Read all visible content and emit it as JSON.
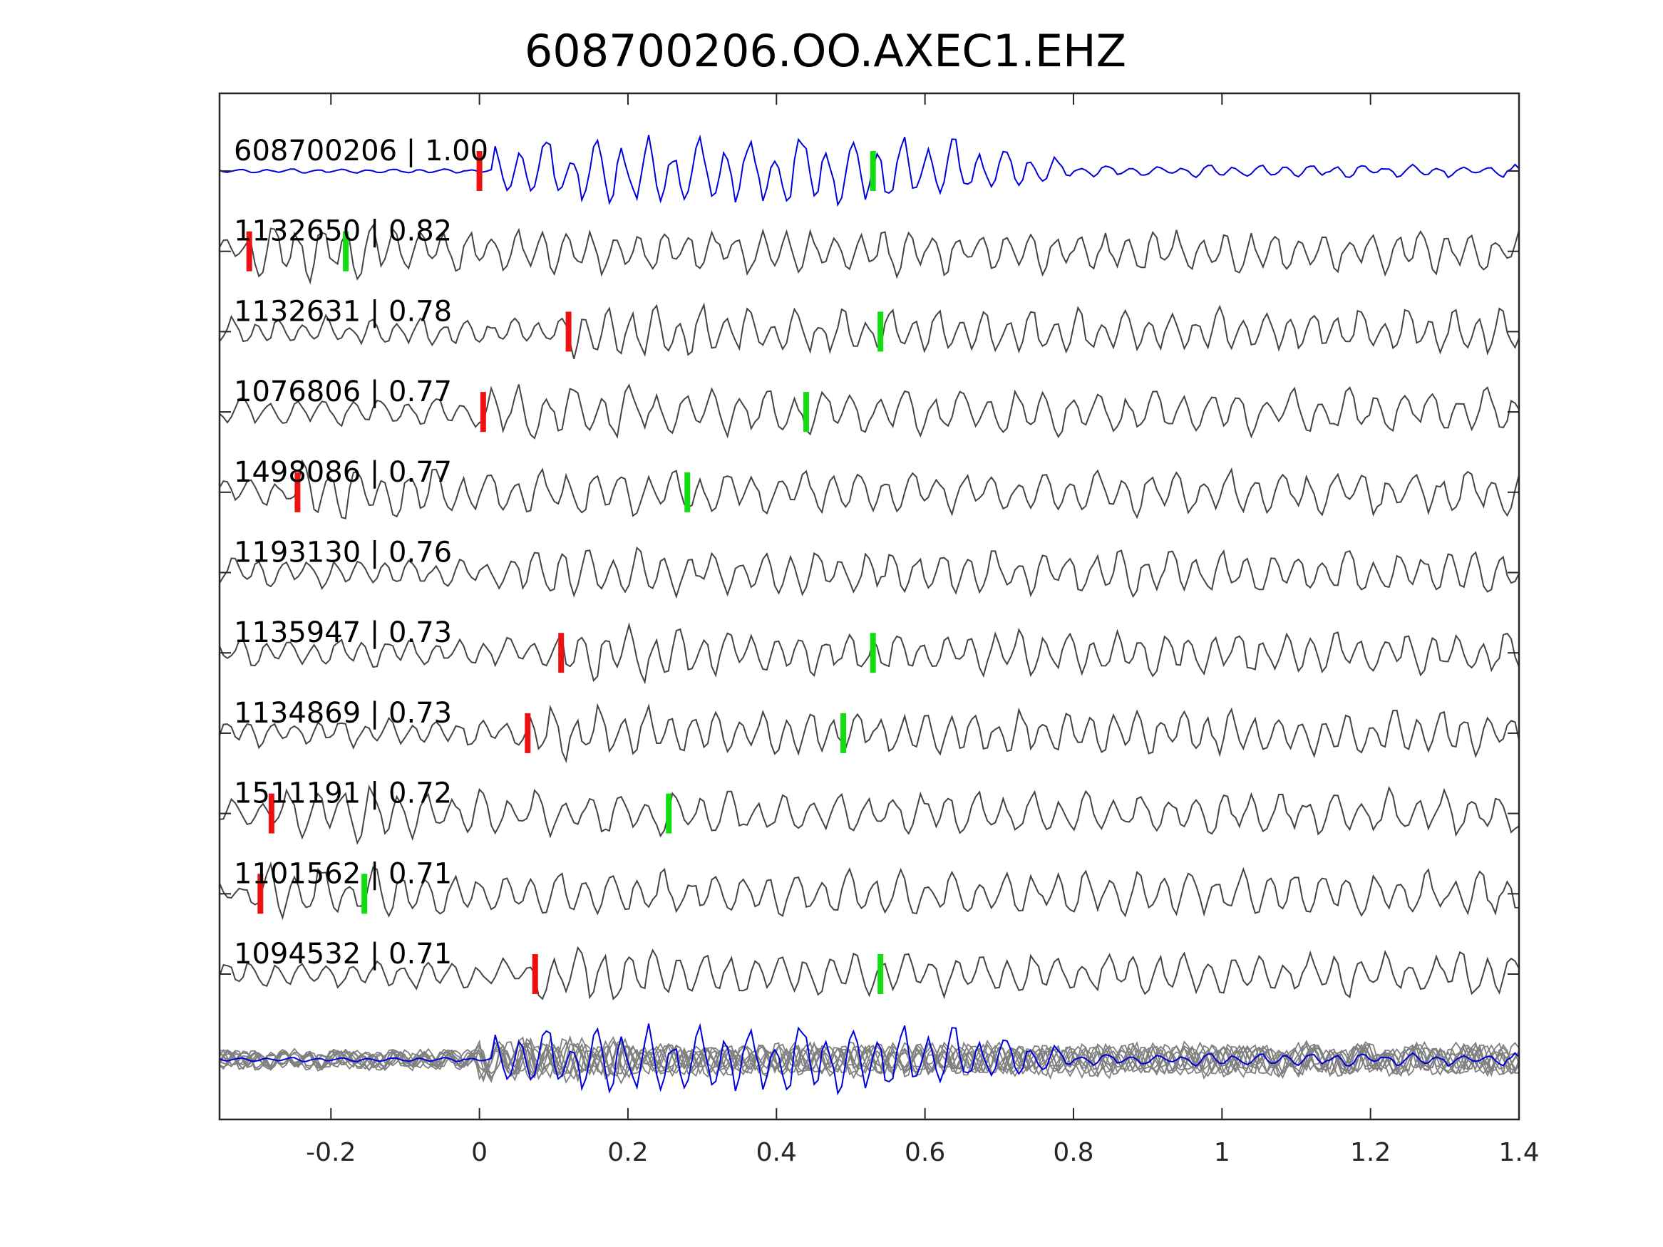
{
  "chart_data": {
    "type": "line",
    "title": "608700206.OO.AXEC1.EHZ",
    "xlabel": "",
    "ylabel": "",
    "xlim": [
      -0.35,
      1.4
    ],
    "x_ticks": [
      {
        "value": -0.2,
        "label": "-0.2"
      },
      {
        "value": 0,
        "label": "0"
      },
      {
        "value": 0.2,
        "label": "0.2"
      },
      {
        "value": 0.4,
        "label": "0.4"
      },
      {
        "value": 0.6,
        "label": "0.6"
      },
      {
        "value": 0.8,
        "label": "0.8"
      },
      {
        "value": 1,
        "label": "1"
      },
      {
        "value": 1.2,
        "label": "1.2"
      },
      {
        "value": 1.4,
        "label": "1.4"
      }
    ],
    "grid": false,
    "colors": {
      "master": "#0000dd",
      "trace": "#444444",
      "overlay": "#808080",
      "p_pick": "#ee1111",
      "s_pick": "#11dd11",
      "axes": "#262626"
    },
    "traces": [
      {
        "id": "608700206",
        "cc": "1.00",
        "label": "608700206 | 1.00",
        "is_master": true,
        "p_pick": 0.0,
        "s_pick": 0.53
      },
      {
        "id": "1132650",
        "cc": "0.82",
        "label": "1132650 | 0.82",
        "p_pick": -0.31,
        "s_pick": -0.18
      },
      {
        "id": "1132631",
        "cc": "0.78",
        "label": "1132631 | 0.78",
        "p_pick": 0.12,
        "s_pick": 0.54
      },
      {
        "id": "1076806",
        "cc": "0.77",
        "label": "1076806 | 0.77",
        "p_pick": 0.005,
        "s_pick": 0.44
      },
      {
        "id": "1498086",
        "cc": "0.77",
        "label": "1498086 | 0.77",
        "p_pick": -0.245,
        "s_pick": 0.28
      },
      {
        "id": "1193130",
        "cc": "0.76",
        "label": "1193130 | 0.76",
        "p_pick": null,
        "s_pick": null
      },
      {
        "id": "1135947",
        "cc": "0.73",
        "label": "1135947 | 0.73",
        "p_pick": 0.11,
        "s_pick": 0.53
      },
      {
        "id": "1134869",
        "cc": "0.73",
        "label": "1134869 | 0.73",
        "p_pick": 0.065,
        "s_pick": 0.49
      },
      {
        "id": "1511191",
        "cc": "0.72",
        "label": "1511191 | 0.72",
        "p_pick": -0.28,
        "s_pick": 0.255
      },
      {
        "id": "1101562",
        "cc": "0.71",
        "label": "1101562 | 0.71",
        "p_pick": -0.295,
        "s_pick": -0.155
      },
      {
        "id": "1094532",
        "cc": "0.71",
        "label": "1094532 | 0.71",
        "p_pick": 0.075,
        "s_pick": 0.54
      }
    ],
    "overlay": {
      "description_visible": false
    }
  }
}
